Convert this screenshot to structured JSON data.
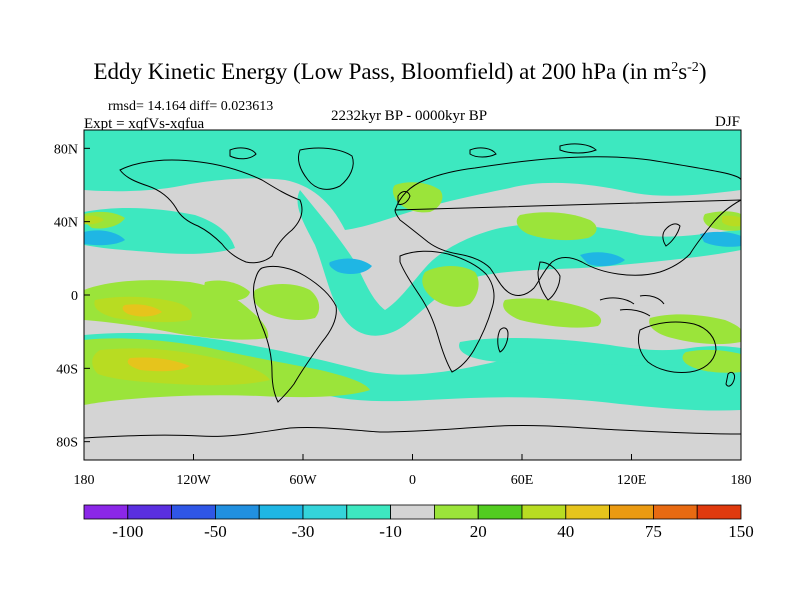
{
  "title": {
    "main": "Eddy Kinetic Energy (Low Pass, Bloomfield) at 200 hPa (in m",
    "sup1": "2",
    "mid": "s",
    "sup2": "-2",
    "end": ")"
  },
  "stats": "rmsd= 14.164 diff= 0.023613",
  "experiment": "Expt = xqfVs-xqfua",
  "period": "2232kyr BP - 0000kyr BP",
  "season": "DJF",
  "axes": {
    "x_ticks": [
      {
        "value": -180,
        "label": "180"
      },
      {
        "value": -120,
        "label": "120W"
      },
      {
        "value": -60,
        "label": "60W"
      },
      {
        "value": 0,
        "label": "0"
      },
      {
        "value": 60,
        "label": "60E"
      },
      {
        "value": 120,
        "label": "120E"
      },
      {
        "value": 180,
        "label": "180"
      }
    ],
    "y_ticks": [
      {
        "value": 80,
        "label": "80N"
      },
      {
        "value": 40,
        "label": "40N"
      },
      {
        "value": 0,
        "label": "0"
      },
      {
        "value": -40,
        "label": "40S"
      },
      {
        "value": -80,
        "label": "80S"
      }
    ],
    "lon_range": [
      -180,
      180
    ],
    "lat_range": [
      -90,
      90
    ]
  },
  "colorbar": {
    "colors": [
      "#8b27e8",
      "#5a2fe0",
      "#2f56e6",
      "#2190e0",
      "#1fb6e4",
      "#34d4da",
      "#3de8c0",
      "#d4d4d4",
      "#9be43a",
      "#52cc20",
      "#b8dc22",
      "#e6c41c",
      "#ea9a12",
      "#e86a12",
      "#e03a0e"
    ],
    "labels": [
      {
        "boundary": 1,
        "text": "-100"
      },
      {
        "boundary": 3,
        "text": "-50"
      },
      {
        "boundary": 5,
        "text": "-30"
      },
      {
        "boundary": 7,
        "text": "-10"
      },
      {
        "boundary": 9,
        "text": "20"
      },
      {
        "boundary": 11,
        "text": "40"
      },
      {
        "boundary": 13,
        "text": "75"
      },
      {
        "boundary": 15,
        "text": "150"
      }
    ]
  },
  "map_colors": {
    "background": "#d4d4d4",
    "teal": "#3de8c0",
    "cyan": "#34d4da",
    "light_blue": "#1fb6e4",
    "blue": "#2190e0",
    "green": "#9be43a",
    "mid_green": "#52cc20",
    "yellow_green": "#b8dc22",
    "yellow": "#e6c41c",
    "orange": "#ea9a12",
    "coast": "#000000"
  }
}
